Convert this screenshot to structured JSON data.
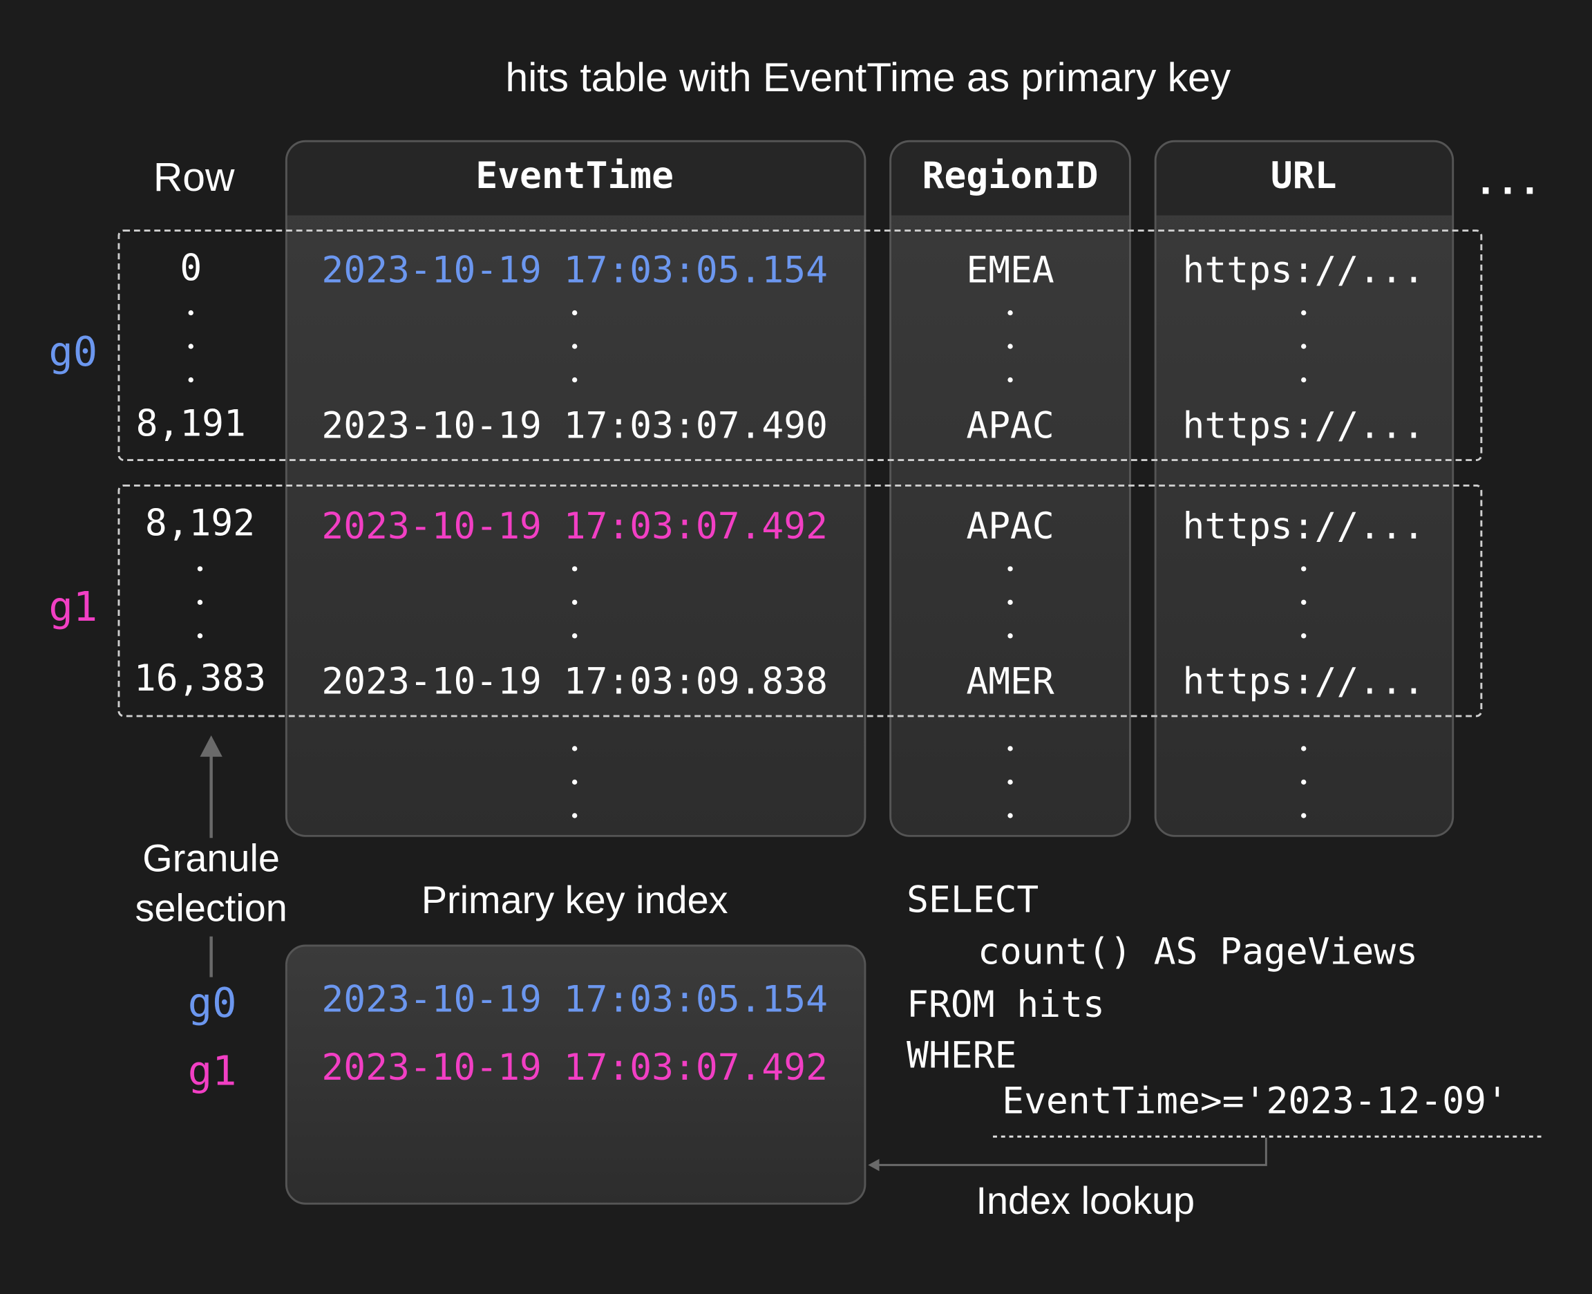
{
  "title": "hits table with EventTime as primary key",
  "colors": {
    "granule_0": "#6c97ef",
    "granule_1": "#f23fc4",
    "background": "#1c1c1c"
  },
  "table": {
    "row_header": "Row",
    "columns": [
      "EventTime",
      "RegionID",
      "URL"
    ],
    "more_columns": "...",
    "granules": [
      {
        "label": "g0",
        "first_row": "0",
        "last_row": "8,191",
        "first": {
          "EventTime": "2023-10-19 17:03:05.154",
          "RegionID": "EMEA",
          "URL": "https://..."
        },
        "last": {
          "EventTime": "2023-10-19 17:03:07.490",
          "RegionID": "APAC",
          "URL": "https://..."
        }
      },
      {
        "label": "g1",
        "first_row": "8,192",
        "last_row": "16,383",
        "first": {
          "EventTime": "2023-10-19 17:03:07.492",
          "RegionID": "APAC",
          "URL": "https://..."
        },
        "last": {
          "EventTime": "2023-10-19 17:03:09.838",
          "RegionID": "AMER",
          "URL": "https://..."
        }
      }
    ]
  },
  "granule_selection_label": [
    "Granule",
    "selection"
  ],
  "index": {
    "title": "Primary key index",
    "entries": [
      {
        "label": "g0",
        "value": "2023-10-19 17:03:05.154"
      },
      {
        "label": "g1",
        "value": "2023-10-19 17:03:07.492"
      }
    ]
  },
  "query": {
    "lines": [
      "SELECT",
      "count() AS PageViews",
      "FROM hits",
      "WHERE",
      "EventTime>='2023-12-09'"
    ]
  },
  "index_lookup_label": "Index lookup"
}
